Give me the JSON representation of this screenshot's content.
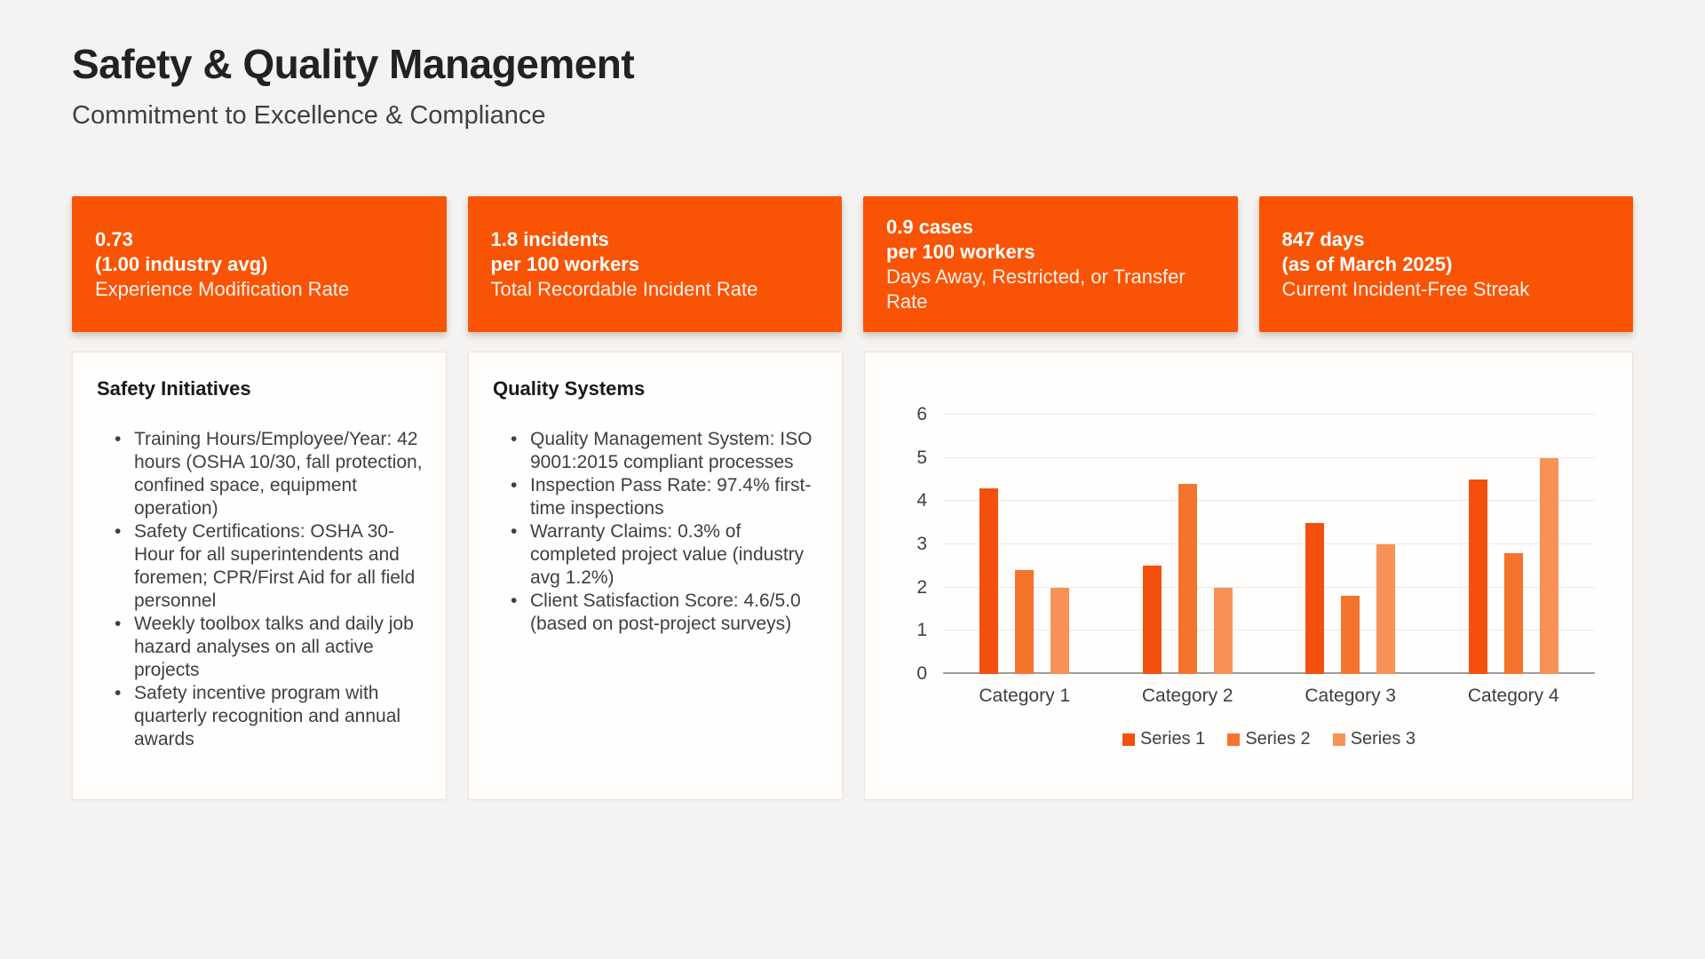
{
  "page": {
    "title": "Safety & Quality Management",
    "subtitle": "Commitment to Excellence & Compliance"
  },
  "colors": {
    "background": "#f4f3f1",
    "accent_orange": "#f95405",
    "card_border": "#f7e0d0",
    "grid_line": "#e9e9e9",
    "axis_line": "#9d9d9d"
  },
  "kpis": [
    {
      "line1": "0.73",
      "line2": "(1.00 industry avg)",
      "label": "Experience Modification Rate"
    },
    {
      "line1": "1.8 incidents",
      "line2": "per 100 workers",
      "label": "Total Recordable Incident Rate"
    },
    {
      "line1": "0.9 cases",
      "line2": "per 100 workers",
      "label": "Days Away, Restricted, or Transfer Rate"
    },
    {
      "line1": "847 days",
      "line2": "(as of March 2025)",
      "label": "Current Incident-Free Streak"
    }
  ],
  "sections": [
    {
      "heading": "Safety Initiatives",
      "bullets": [
        "Training Hours/Employee/Year: 42 hours (OSHA 10/30, fall protection, confined space, equipment operation)",
        "Safety Certifications: OSHA 30-Hour for all superintendents and foremen; CPR/First Aid for all field personnel",
        "Weekly toolbox talks and daily job hazard analyses on all active projects",
        "Safety incentive program with quarterly recognition and annual awards"
      ]
    },
    {
      "heading": "Quality Systems",
      "bullets": [
        "Quality Management System: ISO 9001:2015 compliant processes",
        "Inspection Pass Rate: 97.4% first-time inspections",
        "Warranty Claims: 0.3% of completed project value (industry avg 1.2%)",
        "Client Satisfaction Score: 4.6/5.0 (based on post-project surveys)"
      ]
    }
  ],
  "chart_data": {
    "type": "bar",
    "title": "",
    "xlabel": "",
    "ylabel": "",
    "categories": [
      "Category 1",
      "Category 2",
      "Category 3",
      "Category 4"
    ],
    "series": [
      {
        "name": "Series 1",
        "color": "#f4500d",
        "values": [
          4.3,
          2.5,
          3.5,
          4.5
        ]
      },
      {
        "name": "Series 2",
        "color": "#f5732c",
        "values": [
          2.4,
          4.4,
          1.8,
          2.8
        ]
      },
      {
        "name": "Series 3",
        "color": "#f89156",
        "values": [
          2.0,
          2.0,
          3.0,
          5.0
        ]
      }
    ],
    "ylim": [
      0,
      6
    ],
    "yticks": [
      0,
      1,
      2,
      3,
      4,
      5,
      6
    ],
    "grid": true,
    "legend_position": "bottom"
  }
}
